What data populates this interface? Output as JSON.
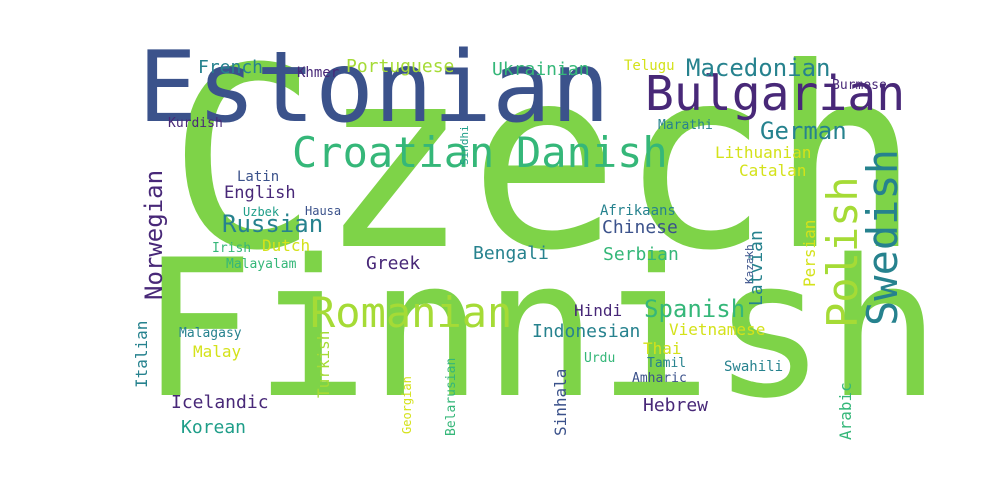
{
  "word_cloud": {
    "palette": {
      "green": "#7ed348",
      "navy": "#3b528b",
      "purple": "#482878",
      "teal": "#26828e",
      "seagreen": "#35b779",
      "cyan": "#1f9e89",
      "yellow": "#d4e21a",
      "lightgreen": "#a5db36"
    },
    "words": [
      {
        "text": "Czech",
        "color": "green"
      },
      {
        "text": "Finnish",
        "color": "green"
      },
      {
        "text": "Estonian",
        "color": "navy"
      },
      {
        "text": "Bulgarian",
        "color": "purple"
      },
      {
        "text": "Croatian",
        "color": "seagreen"
      },
      {
        "text": "Danish",
        "color": "seagreen"
      },
      {
        "text": "Swedish",
        "color": "teal"
      },
      {
        "text": "Polish",
        "color": "lightgreen"
      },
      {
        "text": "Romanian",
        "color": "lightgreen"
      },
      {
        "text": "Macedonian",
        "color": "teal"
      },
      {
        "text": "German",
        "color": "teal"
      },
      {
        "text": "Russian",
        "color": "teal"
      },
      {
        "text": "Norwegian",
        "color": "purple"
      },
      {
        "text": "Spanish",
        "color": "seagreen"
      },
      {
        "text": "French",
        "color": "teal"
      },
      {
        "text": "Portuguese",
        "color": "lightgreen"
      },
      {
        "text": "Ukrainian",
        "color": "seagreen"
      },
      {
        "text": "Khmer",
        "color": "purple"
      },
      {
        "text": "Telugu",
        "color": "yellow"
      },
      {
        "text": "Burmese",
        "color": "purple"
      },
      {
        "text": "Kurdish",
        "color": "purple"
      },
      {
        "text": "Marathi",
        "color": "teal"
      },
      {
        "text": "Sindhi",
        "color": "cyan"
      },
      {
        "text": "Lithuanian",
        "color": "yellow"
      },
      {
        "text": "Catalan",
        "color": "yellow"
      },
      {
        "text": "Latin",
        "color": "navy"
      },
      {
        "text": "English",
        "color": "purple"
      },
      {
        "text": "Uzbek",
        "color": "cyan"
      },
      {
        "text": "Hausa",
        "color": "navy"
      },
      {
        "text": "Irish",
        "color": "seagreen"
      },
      {
        "text": "Dutch",
        "color": "yellow"
      },
      {
        "text": "Malayalam",
        "color": "seagreen"
      },
      {
        "text": "Greek",
        "color": "purple"
      },
      {
        "text": "Bengali",
        "color": "teal"
      },
      {
        "text": "Afrikaans",
        "color": "teal"
      },
      {
        "text": "Chinese",
        "color": "navy"
      },
      {
        "text": "Serbian",
        "color": "seagreen"
      },
      {
        "text": "Kazakh",
        "color": "navy"
      },
      {
        "text": "Latvian",
        "color": "teal"
      },
      {
        "text": "Persian",
        "color": "yellow"
      },
      {
        "text": "Hindi",
        "color": "purple"
      },
      {
        "text": "Indonesian",
        "color": "teal"
      },
      {
        "text": "Vietnamese",
        "color": "yellow"
      },
      {
        "text": "Thai",
        "color": "yellow"
      },
      {
        "text": "Italian",
        "color": "teal"
      },
      {
        "text": "Malagasy",
        "color": "teal"
      },
      {
        "text": "Malay",
        "color": "yellow"
      },
      {
        "text": "Turkish",
        "color": "lightgreen"
      },
      {
        "text": "Icelandic",
        "color": "purple"
      },
      {
        "text": "Korean",
        "color": "cyan"
      },
      {
        "text": "Georgian",
        "color": "yellow"
      },
      {
        "text": "Belarusian",
        "color": "seagreen"
      },
      {
        "text": "Sinhala",
        "color": "navy"
      },
      {
        "text": "Urdu",
        "color": "seagreen"
      },
      {
        "text": "Tamil",
        "color": "teal"
      },
      {
        "text": "Amharic",
        "color": "navy"
      },
      {
        "text": "Swahili",
        "color": "teal"
      },
      {
        "text": "Hebrew",
        "color": "purple"
      },
      {
        "text": "Arabic",
        "color": "seagreen"
      }
    ]
  }
}
